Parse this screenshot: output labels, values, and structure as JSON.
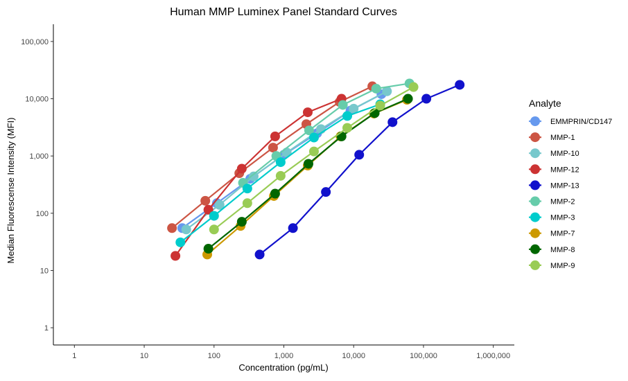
{
  "chart_data": {
    "type": "line",
    "title": "Human MMP Luminex Panel Standard Curves",
    "xlabel": "Concentration (pg/mL)",
    "ylabel": "Median Fluorescense Intensity (MFI)",
    "xscale": "log10",
    "yscale": "log10",
    "xlim": [
      0.5,
      2000000
    ],
    "ylim": [
      0.5,
      200000
    ],
    "x_ticks": [
      1,
      10,
      100,
      1000,
      10000,
      100000,
      1000000
    ],
    "x_tick_labels": [
      "1",
      "10",
      "100",
      "1,000",
      "10,000",
      "100,000",
      "1,000,000"
    ],
    "y_ticks": [
      1,
      10,
      100,
      1000,
      10000,
      100000
    ],
    "y_tick_labels": [
      "1",
      "10",
      "100",
      "1,000",
      "10,000",
      "100,000"
    ],
    "grid": false,
    "legend_title": "Analyte",
    "legend_position": "right",
    "series": [
      {
        "name": "EMMPRIN/CD147",
        "color": "#6699EE",
        "x": [
          35,
          110,
          330,
          1000,
          3000,
          9000,
          25000
        ],
        "y": [
          55,
          150,
          400,
          1050,
          2500,
          6200,
          12000
        ]
      },
      {
        "name": "MMP-1",
        "color": "#CC5544",
        "x": [
          25,
          75,
          230,
          700,
          2100,
          6300,
          18500
        ],
        "y": [
          55,
          165,
          500,
          1400,
          3600,
          8800,
          16500
        ]
      },
      {
        "name": "MMP-10",
        "color": "#77C8CC",
        "x": [
          40,
          120,
          370,
          1100,
          3400,
          10000,
          30000
        ],
        "y": [
          52,
          140,
          440,
          1150,
          2950,
          6700,
          13500
        ]
      },
      {
        "name": "MMP-12",
        "color": "#CC3333",
        "x": [
          28,
          83,
          250,
          750,
          2200,
          6700
        ],
        "y": [
          18,
          115,
          600,
          2200,
          5800,
          10000
        ]
      },
      {
        "name": "MMP-13",
        "color": "#1111CC",
        "x": [
          450,
          1350,
          4000,
          12000,
          36000,
          110000,
          330000
        ],
        "y": [
          19,
          55,
          235,
          1050,
          3900,
          10000,
          17500
        ]
      },
      {
        "name": "MMP-2",
        "color": "#66CCAA",
        "x": [
          260,
          780,
          2300,
          7000,
          21000,
          63000
        ],
        "y": [
          340,
          1000,
          2800,
          7800,
          15000,
          18500
        ]
      },
      {
        "name": "MMP-3",
        "color": "#00CCCC",
        "x": [
          33,
          100,
          300,
          900,
          2700,
          8100,
          24000
        ],
        "y": [
          31,
          90,
          270,
          780,
          2100,
          5000,
          8000
        ]
      },
      {
        "name": "MMP-7",
        "color": "#CC9900",
        "x": [
          80,
          240,
          720,
          2200,
          6500,
          19500,
          58000
        ],
        "y": [
          19,
          60,
          200,
          680,
          2200,
          5500,
          9600
        ]
      },
      {
        "name": "MMP-8",
        "color": "#006600",
        "x": [
          83,
          250,
          750,
          2250,
          6700,
          20000,
          60000
        ],
        "y": [
          24,
          71,
          220,
          730,
          2200,
          5600,
          10000
        ]
      },
      {
        "name": "MMP-9",
        "color": "#99CC55",
        "x": [
          100,
          300,
          900,
          2700,
          8100,
          24000,
          72000
        ],
        "y": [
          52,
          150,
          450,
          1200,
          3100,
          7600,
          16000
        ]
      }
    ]
  }
}
